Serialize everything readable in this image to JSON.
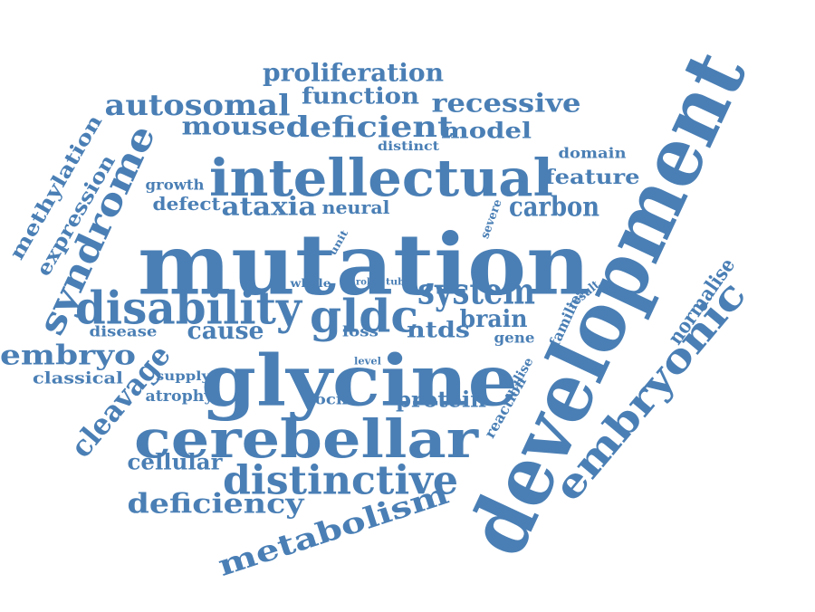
{
  "color": "#4a7fb5",
  "words": [
    {
      "key": "development",
      "text": "development"
    },
    {
      "key": "mutation",
      "text": "mutation"
    },
    {
      "key": "glycine",
      "text": "glycine"
    },
    {
      "key": "cerebellar",
      "text": "cerebellar"
    },
    {
      "key": "intellectual",
      "text": "intellectual"
    },
    {
      "key": "disability",
      "text": "disability"
    },
    {
      "key": "distinctive",
      "text": "distinctive"
    },
    {
      "key": "embryonic",
      "text": "embryonic"
    },
    {
      "key": "gldc",
      "text": "gldc"
    },
    {
      "key": "syndrome",
      "text": "syndrome"
    },
    {
      "key": "metabolism",
      "text": "metabolism"
    },
    {
      "key": "cleavage",
      "text": "cleavage"
    },
    {
      "key": "system",
      "text": "system"
    },
    {
      "key": "deficient",
      "text": "deficient"
    },
    {
      "key": "autosomal",
      "text": "autosomal"
    },
    {
      "key": "recessive",
      "text": "recessive"
    },
    {
      "key": "deficiency",
      "text": "deficiency"
    },
    {
      "key": "embryo",
      "text": "embryo"
    },
    {
      "key": "proliferation",
      "text": "proliferation"
    },
    {
      "key": "function",
      "text": "function"
    },
    {
      "key": "mouse",
      "text": "mouse"
    },
    {
      "key": "model",
      "text": "model"
    },
    {
      "key": "carbon",
      "text": "carbon"
    },
    {
      "key": "brain",
      "text": "brain"
    },
    {
      "key": "ntds",
      "text": "ntds"
    },
    {
      "key": "cause",
      "text": "cause"
    },
    {
      "key": "protein",
      "text": "protein"
    },
    {
      "key": "cellular",
      "text": "cellular"
    },
    {
      "key": "ataxia",
      "text": "ataxia"
    },
    {
      "key": "methylation",
      "text": "methylation"
    },
    {
      "key": "expression",
      "text": "expression"
    },
    {
      "key": "feature",
      "text": "feature"
    },
    {
      "key": "normalise",
      "text": "normalise"
    },
    {
      "key": "neural",
      "text": "neural"
    },
    {
      "key": "defect",
      "text": "defect"
    },
    {
      "key": "classical",
      "text": "classical"
    },
    {
      "key": "disease",
      "text": "disease"
    },
    {
      "key": "atrophy",
      "text": "atrophy"
    },
    {
      "key": "growth",
      "text": "growth"
    },
    {
      "key": "domain",
      "text": "domain"
    },
    {
      "key": "distinct",
      "text": "distinct"
    },
    {
      "key": "supply",
      "text": "supply"
    },
    {
      "key": "focm",
      "text": "focm"
    },
    {
      "key": "loss",
      "text": "loss"
    },
    {
      "key": "gene",
      "text": "gene"
    },
    {
      "key": "families",
      "text": "families"
    },
    {
      "key": "reaction",
      "text": "reaction"
    },
    {
      "key": "utilise",
      "text": "utilise"
    },
    {
      "key": "result",
      "text": "result"
    },
    {
      "key": "severe",
      "text": "severe"
    },
    {
      "key": "unit",
      "text": "unit"
    },
    {
      "key": "whole",
      "text": "whole"
    },
    {
      "key": "role",
      "text": "role"
    },
    {
      "key": "tube",
      "text": "tube"
    },
    {
      "key": "level",
      "text": "level"
    }
  ]
}
